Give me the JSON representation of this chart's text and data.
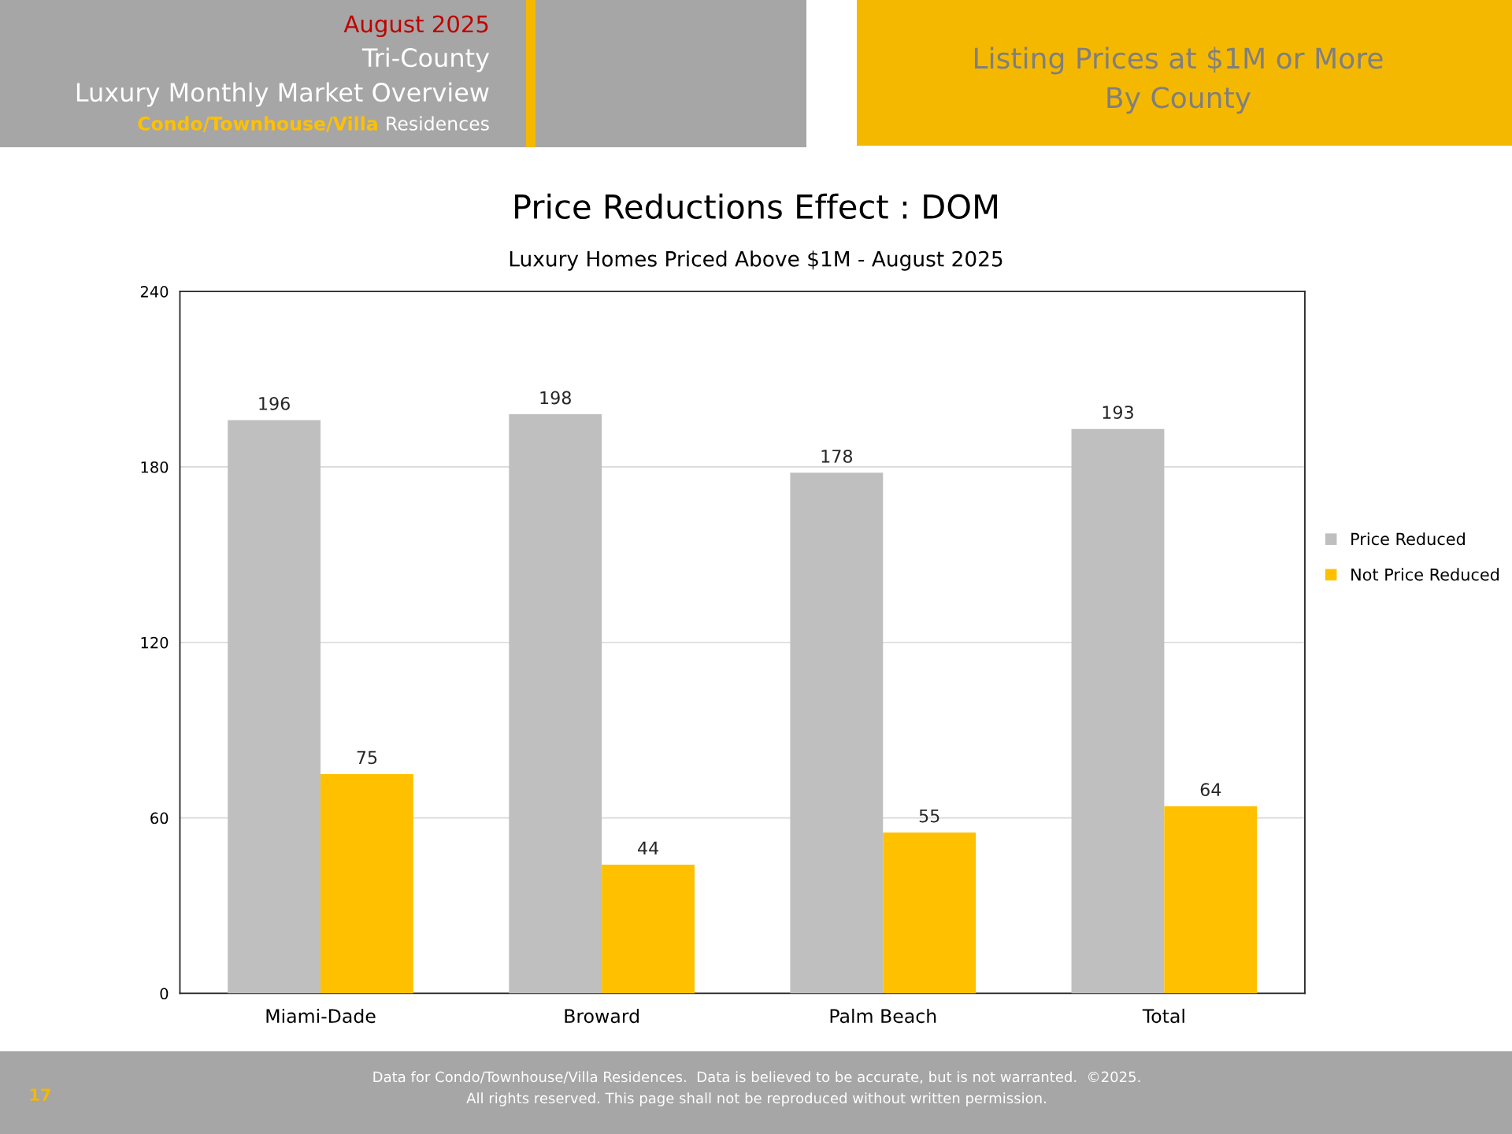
{
  "chart_data": {
    "type": "bar",
    "title": "Price Reductions Effect : DOM",
    "subtitle": "Luxury Homes Priced Above $1M - August 2025",
    "categories": [
      "Miami-Dade",
      "Broward",
      "Palm Beach",
      "Total"
    ],
    "series": [
      {
        "name": "Price Reduced",
        "color": "#bfbfbf",
        "values": [
          196,
          198,
          178,
          193
        ]
      },
      {
        "name": "Not Price Reduced",
        "color": "#ffc000",
        "values": [
          75,
          44,
          55,
          64
        ]
      }
    ],
    "ylim": [
      0,
      240
    ],
    "yticks": [
      0,
      60,
      120,
      180,
      240
    ],
    "grid": "y",
    "legend": "right",
    "data_labels": true,
    "annotations": [
      "August 2025",
      "Tri-County",
      "Luxury Monthly Market Overview",
      "Condo/Townhouse/Villa",
      "Residences",
      "Listing Prices at $1M or More",
      "By County",
      "17",
      "Data for Condo/Townhouse/Villa Residences.  Data is believed to be accurate, but is not warranted.  ©2025.",
      "All rights reserved. This page shall not be reproduced without written permission."
    ]
  }
}
